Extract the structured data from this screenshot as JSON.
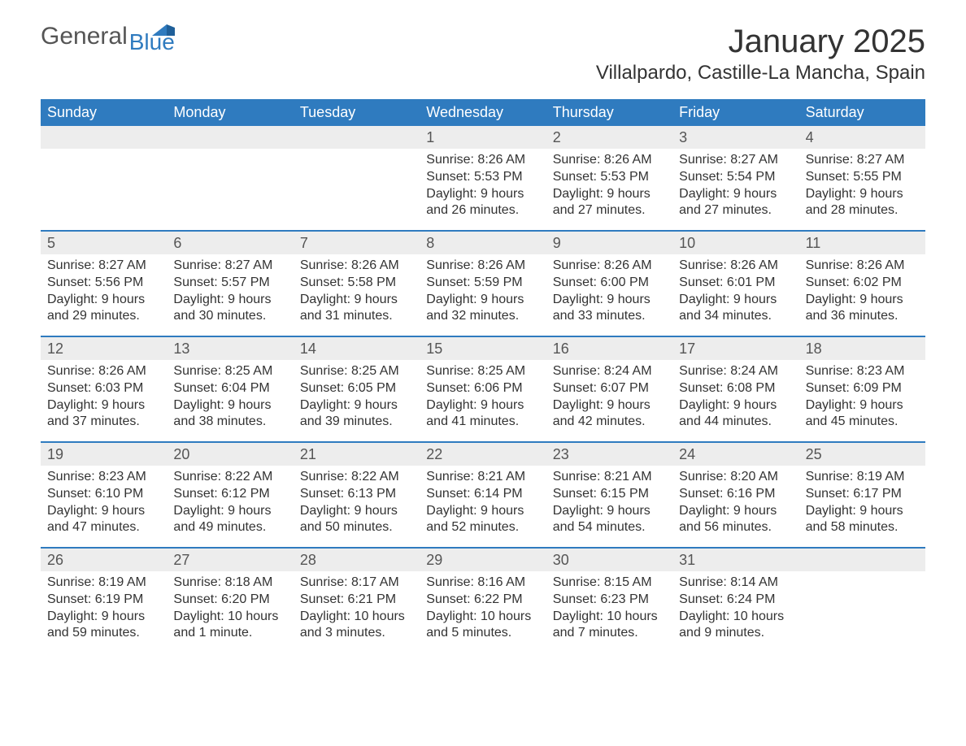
{
  "logo": {
    "general": "General",
    "blue": "Blue"
  },
  "title": "January 2025",
  "subtitle": "Villalpardo, Castille-La Mancha, Spain",
  "colors": {
    "header_bg": "#2f7bbf",
    "header_text": "#ffffff",
    "daynum_bg": "#ededed",
    "week_border": "#2f7bbf",
    "body_text": "#333333",
    "logo_blue": "#2f7bbf"
  },
  "fonts": {
    "title_pt": 40,
    "subtitle_pt": 24,
    "weekday_pt": 18,
    "daynum_pt": 18,
    "body_pt": 16
  },
  "weekdays": [
    "Sunday",
    "Monday",
    "Tuesday",
    "Wednesday",
    "Thursday",
    "Friday",
    "Saturday"
  ],
  "labels": {
    "sunrise": "Sunrise:",
    "sunset": "Sunset:",
    "daylight": "Daylight:"
  },
  "weeks": [
    [
      null,
      null,
      null,
      {
        "d": "1",
        "sr": "8:26 AM",
        "ss": "5:53 PM",
        "dl": "9 hours and 26 minutes."
      },
      {
        "d": "2",
        "sr": "8:26 AM",
        "ss": "5:53 PM",
        "dl": "9 hours and 27 minutes."
      },
      {
        "d": "3",
        "sr": "8:27 AM",
        "ss": "5:54 PM",
        "dl": "9 hours and 27 minutes."
      },
      {
        "d": "4",
        "sr": "8:27 AM",
        "ss": "5:55 PM",
        "dl": "9 hours and 28 minutes."
      }
    ],
    [
      {
        "d": "5",
        "sr": "8:27 AM",
        "ss": "5:56 PM",
        "dl": "9 hours and 29 minutes."
      },
      {
        "d": "6",
        "sr": "8:27 AM",
        "ss": "5:57 PM",
        "dl": "9 hours and 30 minutes."
      },
      {
        "d": "7",
        "sr": "8:26 AM",
        "ss": "5:58 PM",
        "dl": "9 hours and 31 minutes."
      },
      {
        "d": "8",
        "sr": "8:26 AM",
        "ss": "5:59 PM",
        "dl": "9 hours and 32 minutes."
      },
      {
        "d": "9",
        "sr": "8:26 AM",
        "ss": "6:00 PM",
        "dl": "9 hours and 33 minutes."
      },
      {
        "d": "10",
        "sr": "8:26 AM",
        "ss": "6:01 PM",
        "dl": "9 hours and 34 minutes."
      },
      {
        "d": "11",
        "sr": "8:26 AM",
        "ss": "6:02 PM",
        "dl": "9 hours and 36 minutes."
      }
    ],
    [
      {
        "d": "12",
        "sr": "8:26 AM",
        "ss": "6:03 PM",
        "dl": "9 hours and 37 minutes."
      },
      {
        "d": "13",
        "sr": "8:25 AM",
        "ss": "6:04 PM",
        "dl": "9 hours and 38 minutes."
      },
      {
        "d": "14",
        "sr": "8:25 AM",
        "ss": "6:05 PM",
        "dl": "9 hours and 39 minutes."
      },
      {
        "d": "15",
        "sr": "8:25 AM",
        "ss": "6:06 PM",
        "dl": "9 hours and 41 minutes."
      },
      {
        "d": "16",
        "sr": "8:24 AM",
        "ss": "6:07 PM",
        "dl": "9 hours and 42 minutes."
      },
      {
        "d": "17",
        "sr": "8:24 AM",
        "ss": "6:08 PM",
        "dl": "9 hours and 44 minutes."
      },
      {
        "d": "18",
        "sr": "8:23 AM",
        "ss": "6:09 PM",
        "dl": "9 hours and 45 minutes."
      }
    ],
    [
      {
        "d": "19",
        "sr": "8:23 AM",
        "ss": "6:10 PM",
        "dl": "9 hours and 47 minutes."
      },
      {
        "d": "20",
        "sr": "8:22 AM",
        "ss": "6:12 PM",
        "dl": "9 hours and 49 minutes."
      },
      {
        "d": "21",
        "sr": "8:22 AM",
        "ss": "6:13 PM",
        "dl": "9 hours and 50 minutes."
      },
      {
        "d": "22",
        "sr": "8:21 AM",
        "ss": "6:14 PM",
        "dl": "9 hours and 52 minutes."
      },
      {
        "d": "23",
        "sr": "8:21 AM",
        "ss": "6:15 PM",
        "dl": "9 hours and 54 minutes."
      },
      {
        "d": "24",
        "sr": "8:20 AM",
        "ss": "6:16 PM",
        "dl": "9 hours and 56 minutes."
      },
      {
        "d": "25",
        "sr": "8:19 AM",
        "ss": "6:17 PM",
        "dl": "9 hours and 58 minutes."
      }
    ],
    [
      {
        "d": "26",
        "sr": "8:19 AM",
        "ss": "6:19 PM",
        "dl": "9 hours and 59 minutes."
      },
      {
        "d": "27",
        "sr": "8:18 AM",
        "ss": "6:20 PM",
        "dl": "10 hours and 1 minute."
      },
      {
        "d": "28",
        "sr": "8:17 AM",
        "ss": "6:21 PM",
        "dl": "10 hours and 3 minutes."
      },
      {
        "d": "29",
        "sr": "8:16 AM",
        "ss": "6:22 PM",
        "dl": "10 hours and 5 minutes."
      },
      {
        "d": "30",
        "sr": "8:15 AM",
        "ss": "6:23 PM",
        "dl": "10 hours and 7 minutes."
      },
      {
        "d": "31",
        "sr": "8:14 AM",
        "ss": "6:24 PM",
        "dl": "10 hours and 9 minutes."
      },
      null
    ]
  ]
}
